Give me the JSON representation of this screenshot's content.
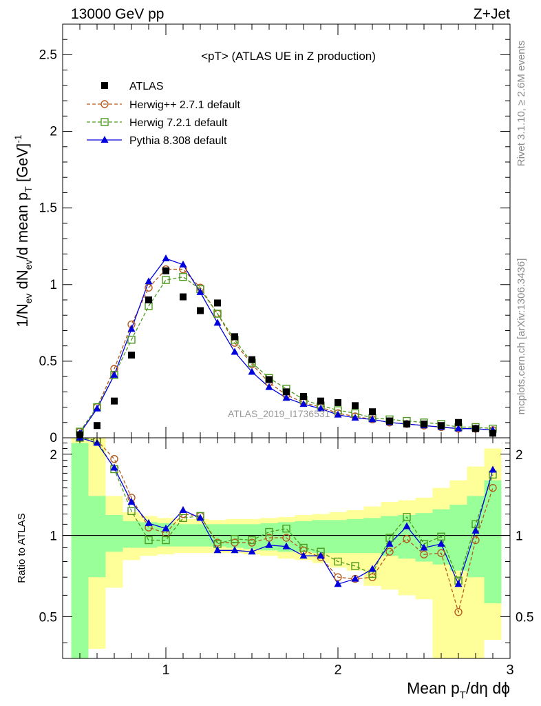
{
  "header": {
    "left": "13000 GeV pp",
    "right": "Z+Jet"
  },
  "chart_data": {
    "type": "line",
    "title": "<pT> (ATLAS UE in Z production)",
    "watermark": "ATLAS_2019_I1736531",
    "xlabel": "Mean pT/dη dφ",
    "ylabel_main": "1/Nev dNev/d mean pT [GeV]-1",
    "ylabel_ratio": "Ratio to ATLAS",
    "side_label_top": "Rivet 3.1.10, ≥ 2.6M events",
    "side_label_bottom": "mcplots.cern.ch [arXiv:1306.3436]",
    "xlim": [
      0.4,
      3.0
    ],
    "ylim_main": [
      0,
      2.7
    ],
    "ylim_ratio": [
      0.35,
      2.3
    ],
    "x_ticks": [
      "1",
      "2",
      "3"
    ],
    "y_ticks_main": [
      "0",
      "0.5",
      "1",
      "1.5",
      "2",
      "2.5"
    ],
    "y_ticks_ratio": [
      "0.5",
      "1",
      "2"
    ],
    "legend_placement": "top-left",
    "x": [
      0.5,
      0.6,
      0.7,
      0.8,
      0.9,
      1.0,
      1.1,
      1.2,
      1.3,
      1.4,
      1.5,
      1.6,
      1.7,
      1.8,
      1.9,
      2.0,
      2.1,
      2.2,
      2.3,
      2.4,
      2.5,
      2.6,
      2.7,
      2.8,
      2.9
    ],
    "series": [
      {
        "name": "ATLAS",
        "marker": "square-filled",
        "color": "#000000",
        "values": [
          0.02,
          0.08,
          0.24,
          0.54,
          0.9,
          1.09,
          0.92,
          0.83,
          0.88,
          0.66,
          0.51,
          0.38,
          0.3,
          0.27,
          0.24,
          0.23,
          0.21,
          0.17,
          0.11,
          0.09,
          0.09,
          0.08,
          0.1,
          0.06,
          0.03
        ]
      },
      {
        "name": "Herwig++ 2.7.1 default",
        "marker": "circle-open",
        "color": "#b35a1f",
        "values": [
          0.04,
          0.2,
          0.45,
          0.74,
          0.98,
          1.1,
          1.1,
          0.98,
          0.81,
          0.62,
          0.48,
          0.36,
          0.28,
          0.23,
          0.2,
          0.16,
          0.14,
          0.12,
          0.1,
          0.09,
          0.08,
          0.07,
          0.06,
          0.06,
          0.05
        ]
      },
      {
        "name": "Herwig 7.2.1 default",
        "marker": "square-open",
        "color": "#4c9a1e",
        "values": [
          0.04,
          0.2,
          0.41,
          0.64,
          0.86,
          1.03,
          1.05,
          0.97,
          0.81,
          0.64,
          0.49,
          0.39,
          0.32,
          0.25,
          0.21,
          0.18,
          0.16,
          0.13,
          0.12,
          0.11,
          0.1,
          0.09,
          0.07,
          0.07,
          0.06
        ]
      },
      {
        "name": "Pythia 8.308 default",
        "marker": "triangle-filled",
        "color": "#0000dd",
        "values": [
          0.03,
          0.19,
          0.41,
          0.71,
          1.02,
          1.17,
          1.13,
          0.95,
          0.75,
          0.56,
          0.43,
          0.33,
          0.26,
          0.22,
          0.19,
          0.15,
          0.13,
          0.12,
          0.1,
          0.09,
          0.08,
          0.07,
          0.06,
          0.06,
          0.05
        ]
      }
    ],
    "ratio": {
      "x": [
        0.5,
        0.6,
        0.7,
        0.8,
        0.9,
        1.0,
        1.1,
        1.2,
        1.3,
        1.4,
        1.5,
        1.6,
        1.7,
        1.8,
        1.9,
        2.0,
        2.1,
        2.2,
        2.3,
        2.4,
        2.5,
        2.6,
        2.7,
        2.8,
        2.9
      ],
      "band_edges": [
        0.45,
        0.55,
        0.65,
        0.75,
        0.85,
        0.95,
        1.05,
        1.15,
        1.25,
        1.35,
        1.45,
        1.55,
        1.65,
        1.75,
        1.85,
        1.95,
        2.05,
        2.15,
        2.25,
        2.35,
        2.45,
        2.55,
        2.65,
        2.75,
        2.85,
        2.95
      ],
      "band_colors": {
        "inner": "#99ff99",
        "outer": "#ffff99"
      },
      "inner_band": {
        "lo": [
          0.35,
          0.7,
          0.87,
          0.9,
          0.9,
          0.91,
          0.91,
          0.91,
          0.91,
          0.9,
          0.89,
          0.88,
          0.87,
          0.87,
          0.86,
          0.86,
          0.86,
          0.86,
          0.84,
          0.82,
          0.8,
          0.78,
          0.74,
          0.7,
          0.56
        ],
        "hi": [
          2.2,
          1.4,
          1.19,
          1.13,
          1.12,
          1.11,
          1.1,
          1.1,
          1.1,
          1.1,
          1.1,
          1.11,
          1.12,
          1.13,
          1.14,
          1.14,
          1.15,
          1.16,
          1.18,
          1.19,
          1.21,
          1.25,
          1.3,
          1.4,
          1.6
        ]
      },
      "outer_band": {
        "lo": [
          0.35,
          0.38,
          0.64,
          0.81,
          0.84,
          0.85,
          0.86,
          0.86,
          0.86,
          0.86,
          0.85,
          0.84,
          0.82,
          0.81,
          0.79,
          0.76,
          0.74,
          0.65,
          0.63,
          0.6,
          0.58,
          0.35,
          0.35,
          0.35,
          0.41
        ],
        "hi": [
          2.3,
          2.3,
          1.4,
          1.22,
          1.18,
          1.16,
          1.15,
          1.15,
          1.14,
          1.15,
          1.15,
          1.16,
          1.17,
          1.19,
          1.2,
          1.22,
          1.24,
          1.28,
          1.33,
          1.35,
          1.38,
          1.5,
          1.6,
          1.8,
          2.1
        ]
      },
      "series": [
        {
          "name": "Herwig++ 2.7.1 default",
          "values": [
            2.3,
            2.25,
            1.92,
            1.38,
            1.07,
            1.02,
            1.2,
            1.18,
            0.94,
            0.94,
            0.94,
            0.98,
            0.98,
            0.88,
            0.83,
            0.7,
            0.69,
            0.7,
            0.87,
            0.97,
            0.85,
            0.86,
            0.52,
            0.96,
            1.5
          ]
        },
        {
          "name": "Herwig 7.2.1 default",
          "values": [
            2.3,
            2.25,
            1.76,
            1.23,
            0.96,
            0.96,
            1.16,
            1.18,
            0.93,
            0.97,
            0.96,
            1.03,
            1.06,
            0.9,
            0.87,
            0.8,
            0.77,
            0.72,
            0.98,
            1.17,
            0.93,
            0.99,
            0.68,
            1.1,
            1.68
          ]
        },
        {
          "name": "Pythia 8.308 default",
          "values": [
            2.3,
            2.2,
            1.78,
            1.33,
            1.11,
            1.06,
            1.24,
            1.16,
            0.88,
            0.88,
            0.87,
            0.92,
            0.91,
            0.84,
            0.84,
            0.66,
            0.69,
            0.75,
            0.93,
            1.08,
            0.9,
            0.93,
            0.66,
            1.04,
            1.75
          ]
        }
      ]
    }
  }
}
